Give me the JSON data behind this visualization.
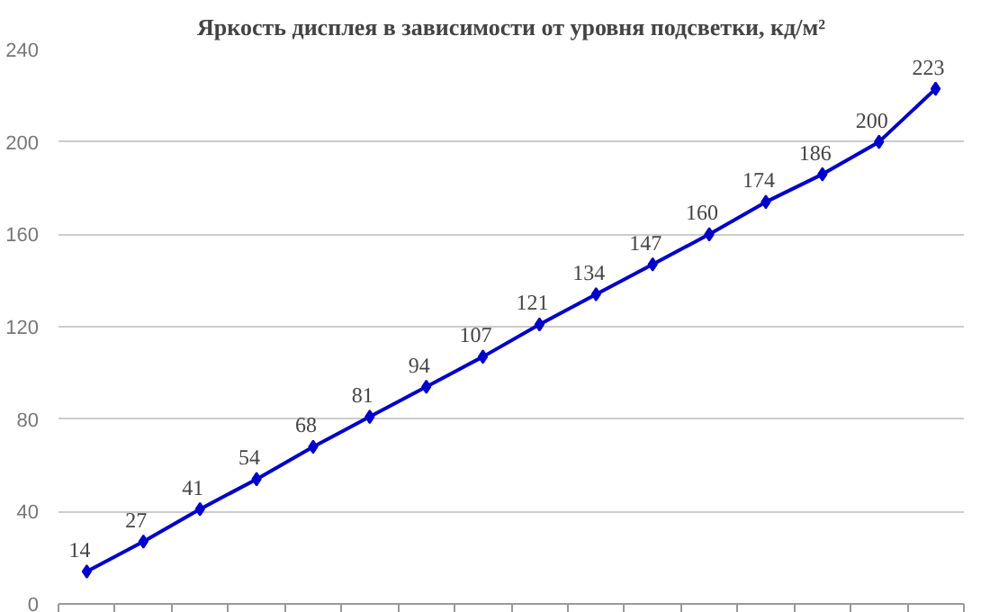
{
  "chart_data": {
    "type": "line",
    "title": "Яркость дисплея в зависимости от уровня подсветки, кд/м²",
    "categories": [
      null,
      null,
      null,
      null,
      null,
      null,
      null,
      null,
      null,
      null,
      null,
      null,
      null,
      null,
      null,
      null
    ],
    "series": [
      {
        "color": "#0000cc",
        "values": [
          14,
          27,
          41,
          54,
          68,
          81,
          94,
          107,
          121,
          134,
          147,
          160,
          174,
          186,
          200,
          223
        ]
      }
    ],
    "ylim": [
      0,
      240
    ],
    "yticks": [
      0,
      40,
      80,
      120,
      160,
      200,
      240
    ],
    "grid": "y",
    "marker": "diamond",
    "line_style": "solid",
    "data_labels": true
  }
}
